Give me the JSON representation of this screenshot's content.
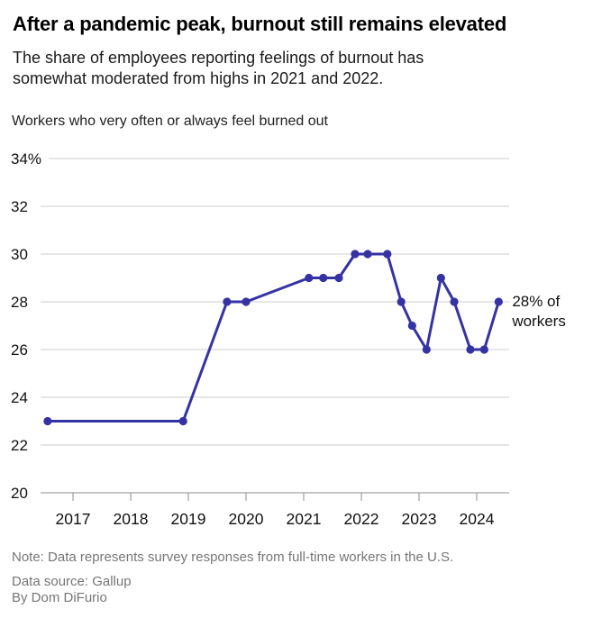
{
  "header": {
    "title": "After a pandemic peak, burnout still remains elevated",
    "subtitle_lines": [
      "The share of employees reporting feelings of burnout has",
      "somewhat moderated from highs in 2021 and 2022."
    ]
  },
  "chart_data": {
    "type": "line",
    "title": "Workers who very often or always feel burned out",
    "xlabel": "",
    "ylabel": "",
    "xlim": [
      2016.35,
      2024.6
    ],
    "ylim": [
      20,
      34
    ],
    "grid": true,
    "legend_position": "none",
    "series": [
      {
        "name": "Workers who very often or always feel burned out",
        "points": [
          {
            "x": 2016.56,
            "y": 23
          },
          {
            "x": 2018.91,
            "y": 23
          },
          {
            "x": 2019.67,
            "y": 28
          },
          {
            "x": 2020.0,
            "y": 28
          },
          {
            "x": 2021.09,
            "y": 29
          },
          {
            "x": 2021.34,
            "y": 29
          },
          {
            "x": 2021.61,
            "y": 29
          },
          {
            "x": 2021.89,
            "y": 30
          },
          {
            "x": 2022.11,
            "y": 30
          },
          {
            "x": 2022.45,
            "y": 30
          },
          {
            "x": 2022.69,
            "y": 28
          },
          {
            "x": 2022.88,
            "y": 27
          },
          {
            "x": 2023.13,
            "y": 26
          },
          {
            "x": 2023.38,
            "y": 29
          },
          {
            "x": 2023.61,
            "y": 28
          },
          {
            "x": 2023.89,
            "y": 26
          },
          {
            "x": 2024.13,
            "y": 26
          },
          {
            "x": 2024.38,
            "y": 28
          }
        ]
      }
    ],
    "y_ticks": [
      {
        "value": 34,
        "label": "34%"
      },
      {
        "value": 32,
        "label": "32"
      },
      {
        "value": 30,
        "label": "30"
      },
      {
        "value": 28,
        "label": "28"
      },
      {
        "value": 26,
        "label": "26"
      },
      {
        "value": 24,
        "label": "24"
      },
      {
        "value": 22,
        "label": "22"
      },
      {
        "value": 20,
        "label": "20"
      }
    ],
    "x_ticks": [
      {
        "value": 2017,
        "label": "2017"
      },
      {
        "value": 2018,
        "label": "2018"
      },
      {
        "value": 2019,
        "label": "2019"
      },
      {
        "value": 2020,
        "label": "2020"
      },
      {
        "value": 2021,
        "label": "2021"
      },
      {
        "value": 2022,
        "label": "2022"
      },
      {
        "value": 2023,
        "label": "2023"
      },
      {
        "value": 2024,
        "label": "2024"
      }
    ],
    "annotation": {
      "x": 2024.38,
      "y": 28,
      "lines": [
        "28% of",
        "workers"
      ]
    },
    "colors": {
      "line": "#3533a3",
      "point": "#3533a3",
      "grid": "#cdcdcd",
      "axis": "#8c8c8c",
      "tick_label": "#111111",
      "annotation_text": "#111111"
    }
  },
  "footer": {
    "note": "Note: Data represents survey responses from full-time workers in the U.S.",
    "source": "Data source: Gallup",
    "byline": "By Dom DiFurio"
  }
}
